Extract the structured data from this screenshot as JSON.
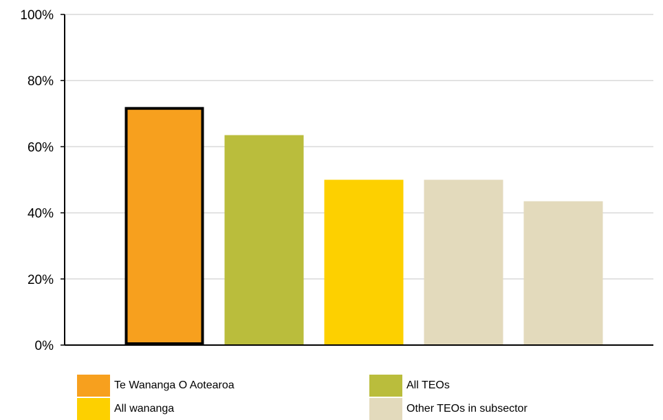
{
  "chart_data": {
    "type": "bar",
    "categories": [
      "Te Wananga O Aotearoa",
      "All TEOs",
      "All wananga",
      "Other TEOs in subsector",
      "Other TEOs in subsector"
    ],
    "values": [
      72,
      63.5,
      50,
      50,
      43.5
    ],
    "colors": [
      "#F7A01E",
      "#BABD3C",
      "#FDD000",
      "#E3DABC",
      "#E3DABC"
    ],
    "highlight_index": 0,
    "highlight_outline_color": "#000000",
    "ylim": [
      0,
      100
    ],
    "yticks": [
      0,
      20,
      40,
      60,
      80,
      100
    ],
    "ytick_labels": [
      "0%",
      "20%",
      "40%",
      "60%",
      "80%",
      "100%"
    ],
    "grid": true,
    "legend_position": "bottom",
    "legend": [
      {
        "label": "Te Wananga O Aotearoa",
        "color": "#F7A01E"
      },
      {
        "label": "All TEOs",
        "color": "#BABD3C"
      },
      {
        "label": "All wananga",
        "color": "#FDD000"
      },
      {
        "label": "Other TEOs in subsector",
        "color": "#E3DABC"
      }
    ]
  }
}
